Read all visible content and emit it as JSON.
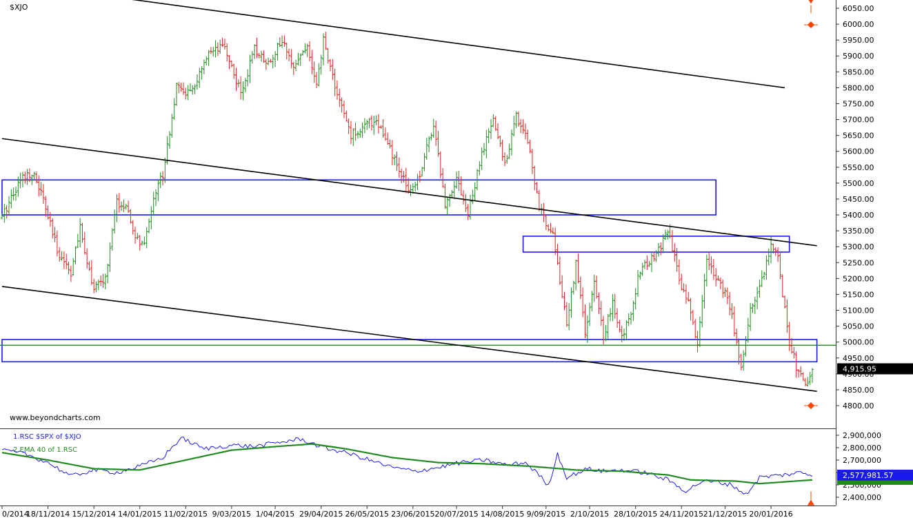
{
  "chart_data": [
    {
      "type": "ohlc",
      "symbol": "$XJO",
      "y_ticks": [
        6050,
        6000,
        5950,
        5900,
        5850,
        5800,
        5750,
        5700,
        5650,
        5600,
        5550,
        5500,
        5450,
        5400,
        5350,
        5300,
        5250,
        5200,
        5150,
        5100,
        5050,
        5000,
        4950,
        4900,
        4850,
        4800
      ],
      "y_tick_labels": [
        "6050.00",
        "6000.00",
        "5950.00",
        "5900.00",
        "5850.00",
        "5800.00",
        "5750.00",
        "5700.00",
        "5650.00",
        "5600.00",
        "5550.00",
        "5500.00",
        "5450.00",
        "5400.00",
        "5350.00",
        "5300.00",
        "5250.00",
        "5200.00",
        "5150.00",
        "5100.00",
        "5050.00",
        "5000.00",
        "4950.00",
        "4900.00",
        "4850.00",
        "4800.00"
      ],
      "ylim": [
        4780,
        6080
      ],
      "last_price_label": "4,915.95",
      "last_price": 4915.95,
      "anchors": [
        {
          "i": 0,
          "c": 5390
        },
        {
          "i": 4,
          "c": 5460
        },
        {
          "i": 9,
          "c": 5520
        },
        {
          "i": 13,
          "c": 5535
        },
        {
          "i": 17,
          "c": 5470
        },
        {
          "i": 24,
          "c": 5290
        },
        {
          "i": 30,
          "c": 5220
        },
        {
          "i": 34,
          "c": 5355
        },
        {
          "i": 40,
          "c": 5165
        },
        {
          "i": 45,
          "c": 5200
        },
        {
          "i": 50,
          "c": 5440
        },
        {
          "i": 54,
          "c": 5420
        },
        {
          "i": 58,
          "c": 5330
        },
        {
          "i": 62,
          "c": 5300
        },
        {
          "i": 66,
          "c": 5460
        },
        {
          "i": 70,
          "c": 5530
        },
        {
          "i": 76,
          "c": 5800
        },
        {
          "i": 82,
          "c": 5780
        },
        {
          "i": 90,
          "c": 5900
        },
        {
          "i": 97,
          "c": 5930
        },
        {
          "i": 104,
          "c": 5780
        },
        {
          "i": 110,
          "c": 5920
        },
        {
          "i": 116,
          "c": 5880
        },
        {
          "i": 122,
          "c": 5950
        },
        {
          "i": 126,
          "c": 5870
        },
        {
          "i": 133,
          "c": 5930
        },
        {
          "i": 137,
          "c": 5800
        },
        {
          "i": 140,
          "c": 5950
        },
        {
          "i": 146,
          "c": 5780
        },
        {
          "i": 152,
          "c": 5650
        },
        {
          "i": 158,
          "c": 5680
        },
        {
          "i": 163,
          "c": 5700
        },
        {
          "i": 168,
          "c": 5620
        },
        {
          "i": 174,
          "c": 5520
        },
        {
          "i": 178,
          "c": 5480
        },
        {
          "i": 182,
          "c": 5530
        },
        {
          "i": 188,
          "c": 5690
        },
        {
          "i": 193,
          "c": 5430
        },
        {
          "i": 198,
          "c": 5520
        },
        {
          "i": 203,
          "c": 5400
        },
        {
          "i": 209,
          "c": 5590
        },
        {
          "i": 214,
          "c": 5700
        },
        {
          "i": 219,
          "c": 5560
        },
        {
          "i": 224,
          "c": 5710
        },
        {
          "i": 229,
          "c": 5640
        },
        {
          "i": 234,
          "c": 5420
        },
        {
          "i": 240,
          "c": 5340
        },
        {
          "i": 246,
          "c": 5050
        },
        {
          "i": 250,
          "c": 5250
        },
        {
          "i": 254,
          "c": 5030
        },
        {
          "i": 258,
          "c": 5180
        },
        {
          "i": 262,
          "c": 5020
        },
        {
          "i": 266,
          "c": 5120
        },
        {
          "i": 270,
          "c": 5010
        },
        {
          "i": 274,
          "c": 5100
        },
        {
          "i": 278,
          "c": 5230
        },
        {
          "i": 282,
          "c": 5250
        },
        {
          "i": 286,
          "c": 5290
        },
        {
          "i": 290,
          "c": 5350
        },
        {
          "i": 295,
          "c": 5200
        },
        {
          "i": 300,
          "c": 5100
        },
        {
          "i": 303,
          "c": 4990
        },
        {
          "i": 307,
          "c": 5260
        },
        {
          "i": 311,
          "c": 5210
        },
        {
          "i": 315,
          "c": 5150
        },
        {
          "i": 318,
          "c": 5080
        },
        {
          "i": 322,
          "c": 4920
        },
        {
          "i": 326,
          "c": 5100
        },
        {
          "i": 331,
          "c": 5200
        },
        {
          "i": 335,
          "c": 5310
        },
        {
          "i": 338,
          "c": 5260
        },
        {
          "i": 343,
          "c": 5000
        },
        {
          "i": 347,
          "c": 4900
        },
        {
          "i": 350,
          "c": 4860
        },
        {
          "i": 353,
          "c": 4916
        }
      ],
      "drawings": [
        {
          "kind": "trendline",
          "color": "#000000",
          "from": {
            "i": 44,
            "p": 6090
          },
          "to": {
            "i": 341,
            "p": 5800
          }
        },
        {
          "kind": "trendline",
          "color": "#000000",
          "from": {
            "i": 0,
            "p": 5640
          },
          "to": {
            "i": 355,
            "p": 5303
          }
        },
        {
          "kind": "trendline",
          "color": "#000000",
          "from": {
            "i": 0,
            "p": 5175
          },
          "to": {
            "i": 355,
            "p": 4845
          }
        },
        {
          "kind": "zone",
          "color": "#1a1aee",
          "from_i": 0,
          "to_i": 311,
          "p_top": 5510,
          "p_bottom": 5400
        },
        {
          "kind": "zone",
          "color": "#1a1aee",
          "from_i": 227,
          "to_i": 343,
          "p_top": 5333,
          "p_bottom": 5283
        },
        {
          "kind": "zone",
          "color": "#1a1aee",
          "from_i": 0,
          "to_i": 355,
          "p_top": 5008,
          "p_bottom": 4938
        },
        {
          "kind": "hline",
          "color": "#1f8a1f",
          "p": 4990
        }
      ],
      "markers": [
        {
          "kind": "arrow-down",
          "color": "#ff4400",
          "i": 356,
          "p": 6060
        },
        {
          "kind": "diamond",
          "color": "#ff4400",
          "i": 356,
          "p": 5998
        },
        {
          "kind": "diamond",
          "color": "#ff4400",
          "i": 356,
          "p": 4800
        }
      ]
    },
    {
      "type": "line",
      "series": [
        {
          "name": "1.RSC  $SPX of $XJO",
          "color": "#1a1aee",
          "anchors": [
            {
              "i": 0,
              "v": 2780000
            },
            {
              "i": 10,
              "v": 2750000
            },
            {
              "i": 20,
              "v": 2680000
            },
            {
              "i": 30,
              "v": 2570000
            },
            {
              "i": 40,
              "v": 2620000
            },
            {
              "i": 50,
              "v": 2600000
            },
            {
              "i": 60,
              "v": 2650000
            },
            {
              "i": 70,
              "v": 2720000
            },
            {
              "i": 78,
              "v": 2880000
            },
            {
              "i": 88,
              "v": 2790000
            },
            {
              "i": 100,
              "v": 2820000
            },
            {
              "i": 110,
              "v": 2810000
            },
            {
              "i": 120,
              "v": 2840000
            },
            {
              "i": 130,
              "v": 2870000
            },
            {
              "i": 140,
              "v": 2800000
            },
            {
              "i": 150,
              "v": 2760000
            },
            {
              "i": 160,
              "v": 2700000
            },
            {
              "i": 170,
              "v": 2640000
            },
            {
              "i": 180,
              "v": 2610000
            },
            {
              "i": 190,
              "v": 2640000
            },
            {
              "i": 200,
              "v": 2680000
            },
            {
              "i": 210,
              "v": 2700000
            },
            {
              "i": 220,
              "v": 2660000
            },
            {
              "i": 228,
              "v": 2680000
            },
            {
              "i": 234,
              "v": 2580000
            },
            {
              "i": 238,
              "v": 2490000
            },
            {
              "i": 242,
              "v": 2750000
            },
            {
              "i": 246,
              "v": 2560000
            },
            {
              "i": 255,
              "v": 2630000
            },
            {
              "i": 262,
              "v": 2610000
            },
            {
              "i": 270,
              "v": 2620000
            },
            {
              "i": 280,
              "v": 2600000
            },
            {
              "i": 290,
              "v": 2540000
            },
            {
              "i": 298,
              "v": 2450000
            },
            {
              "i": 305,
              "v": 2530000
            },
            {
              "i": 312,
              "v": 2520000
            },
            {
              "i": 318,
              "v": 2500000
            },
            {
              "i": 324,
              "v": 2420000
            },
            {
              "i": 330,
              "v": 2560000
            },
            {
              "i": 340,
              "v": 2580000
            },
            {
              "i": 348,
              "v": 2600000
            },
            {
              "i": 353,
              "v": 2578000
            }
          ]
        },
        {
          "name": "2.EMA 40  of 1.RSC",
          "color": "#1f8a1f",
          "anchors": [
            {
              "i": 0,
              "v": 2760000
            },
            {
              "i": 20,
              "v": 2700000
            },
            {
              "i": 40,
              "v": 2630000
            },
            {
              "i": 60,
              "v": 2620000
            },
            {
              "i": 80,
              "v": 2700000
            },
            {
              "i": 100,
              "v": 2780000
            },
            {
              "i": 120,
              "v": 2810000
            },
            {
              "i": 135,
              "v": 2830000
            },
            {
              "i": 150,
              "v": 2790000
            },
            {
              "i": 170,
              "v": 2720000
            },
            {
              "i": 190,
              "v": 2680000
            },
            {
              "i": 210,
              "v": 2670000
            },
            {
              "i": 230,
              "v": 2650000
            },
            {
              "i": 250,
              "v": 2620000
            },
            {
              "i": 270,
              "v": 2610000
            },
            {
              "i": 290,
              "v": 2580000
            },
            {
              "i": 300,
              "v": 2540000
            },
            {
              "i": 320,
              "v": 2530000
            },
            {
              "i": 330,
              "v": 2510000
            },
            {
              "i": 353,
              "v": 2540000
            }
          ]
        }
      ],
      "y_ticks": [
        2900000,
        2800000,
        2700000,
        2600000,
        2500000,
        2400000
      ],
      "y_tick_labels": [
        "2,900,000",
        "2,800,000",
        "2,700,000",
        "2,600,000",
        "2,500,000",
        "2,400,000"
      ],
      "ylim": [
        2330000,
        2940000
      ],
      "last_value_label": "2,577,981.57",
      "last_value": 2577981.57,
      "markers": [
        {
          "kind": "arrow-up",
          "color": "#ff4400",
          "i": 356,
          "v": 2380000
        }
      ]
    }
  ],
  "x_axis": {
    "n_bars": 354,
    "labels": [
      {
        "i": 0,
        "text": "0/2014"
      },
      {
        "i": 20,
        "text": "18/11/2014"
      },
      {
        "i": 40,
        "text": "15/12/2014"
      },
      {
        "i": 60,
        "text": "14/01/2015"
      },
      {
        "i": 80,
        "text": "11/02/2015"
      },
      {
        "i": 100,
        "text": "9/03/2015"
      },
      {
        "i": 119,
        "text": "1/04/2015"
      },
      {
        "i": 139,
        "text": "29/04/2015"
      },
      {
        "i": 159,
        "text": "26/05/2015"
      },
      {
        "i": 179,
        "text": "23/06/2015"
      },
      {
        "i": 198,
        "text": "20/07/2015"
      },
      {
        "i": 218,
        "text": "14/08/2015"
      },
      {
        "i": 237,
        "text": "9/09/2015"
      },
      {
        "i": 256,
        "text": "2/10/2015"
      },
      {
        "i": 276,
        "text": "28/10/2015"
      },
      {
        "i": 296,
        "text": "24/11/2015"
      },
      {
        "i": 315,
        "text": "21/12/2015"
      },
      {
        "i": 335,
        "text": "20/01/2016"
      }
    ]
  },
  "watermark": "www.beyondcharts.com",
  "colors": {
    "up": "#1f8a1f",
    "down": "#dd2222",
    "blue": "#1a1aee",
    "green": "#1f8a1f",
    "marker": "#ff4400"
  }
}
